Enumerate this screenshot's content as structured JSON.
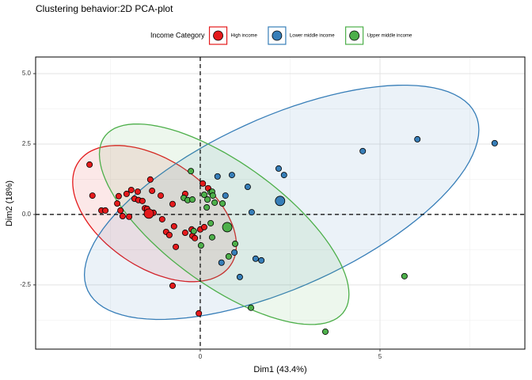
{
  "chart_data": {
    "type": "scatter",
    "title": "Clustering behavior:2D PCA-plot",
    "xlabel": "Dim1 (43.4%)",
    "ylabel": "Dim2 (18%)",
    "legend_title": "Income Category",
    "legend_position": "top",
    "xlim": [
      -4.58,
      9.03
    ],
    "ylim": [
      -4.78,
      5.59
    ],
    "xticks": [
      0,
      5
    ],
    "yticks": [
      {
        "value": 5,
        "label": "5.0"
      },
      {
        "value": 2.5,
        "label": "2.5"
      },
      {
        "value": 0,
        "label": "0.0"
      },
      {
        "value": -2.5,
        "label": "-2.5"
      }
    ],
    "grid": true,
    "hline": 0,
    "vline": 0,
    "series": [
      {
        "name": "High income",
        "color": "#E41A1C",
        "x": [
          -3.08,
          -3.0,
          -2.75,
          -2.64,
          -2.27,
          -2.31,
          -2.22,
          -2.16,
          -2.05,
          -1.98,
          -1.92,
          -1.83,
          -1.74,
          -1.72,
          -1.61,
          -1.54,
          -1.48,
          -1.39,
          -1.34,
          -1.3,
          -1.1,
          -1.06,
          -0.95,
          -0.86,
          -0.77,
          -0.73,
          -0.68,
          -0.42,
          -0.42,
          -0.24,
          -0.22,
          -0.15,
          0,
          0.07,
          -0.77,
          -0.04,
          0.11,
          0.22
        ],
        "y": [
          1.77,
          0.67,
          0.14,
          0.14,
          0.65,
          0.39,
          0.14,
          -0.06,
          0.73,
          -0.08,
          0.87,
          0.56,
          0.81,
          0.51,
          0.48,
          0.22,
          0.2,
          1.24,
          0.84,
          0.06,
          0.67,
          -0.17,
          -0.62,
          -0.73,
          0.37,
          -0.42,
          -1.15,
          0.73,
          -0.65,
          -0.53,
          -0.76,
          -0.84,
          -0.53,
          1.1,
          -2.53,
          -3.51,
          -0.45,
          0.93
        ],
        "centroid_x": -1.43,
        "centroid_y": 0.03
      },
      {
        "name": "Lower middle income",
        "color": "#377EB8",
        "x": [
          0.48,
          0.7,
          0.88,
          1.32,
          1.43,
          1.54,
          1.7,
          1.1,
          0.95,
          2.18,
          2.33,
          4.52,
          6.04,
          8.19,
          0.59
        ],
        "y": [
          1.35,
          0.67,
          1.4,
          0.98,
          0.08,
          -1.57,
          -1.63,
          -2.22,
          -1.35,
          1.63,
          1.4,
          2.25,
          2.67,
          2.53,
          -1.71
        ],
        "centroid_x": 2.22,
        "centroid_y": 0.48
      },
      {
        "name": "Upper middle income",
        "color": "#4DAF4A",
        "x": [
          -0.26,
          0.11,
          0.2,
          0.29,
          0.33,
          0.35,
          0.4,
          0.18,
          -0.46,
          -0.35,
          -0.22,
          -0.18,
          0.02,
          0.29,
          0.33,
          0.62,
          0.79,
          0.97,
          1.41,
          3.48,
          5.68
        ],
        "y": [
          1.54,
          0.7,
          0.53,
          0.79,
          0.81,
          0.67,
          0.42,
          0.25,
          0.59,
          0.51,
          0.53,
          -0.59,
          -1.1,
          -0.31,
          -0.81,
          0.39,
          -1.49,
          -1.04,
          -3.31,
          -4.16,
          -2.19
        ],
        "centroid_x": 0.75,
        "centroid_y": -0.45
      }
    ]
  }
}
